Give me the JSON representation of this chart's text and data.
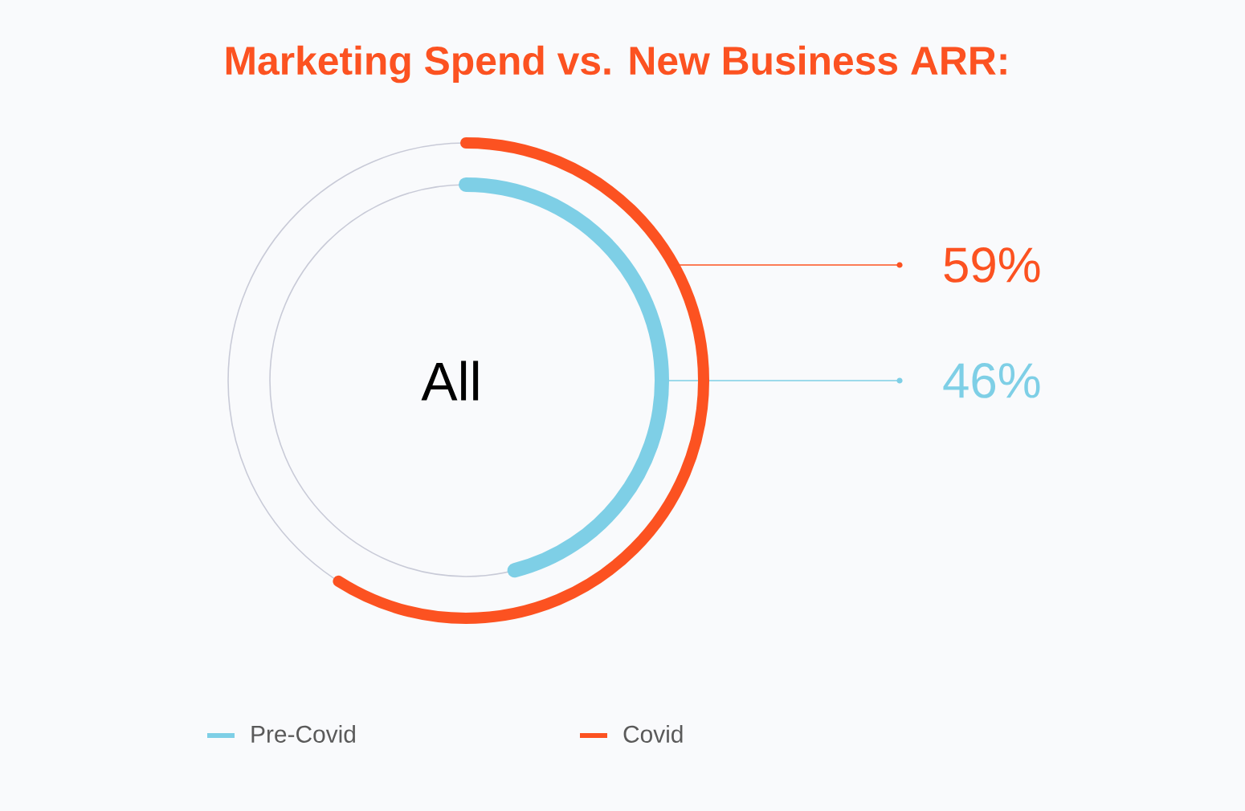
{
  "chart_data": {
    "type": "other",
    "title": "Marketing Spend vs. New Business ARR:",
    "categories": [
      "All"
    ],
    "series": [
      {
        "name": "Pre-Covid",
        "color": "#7ecfe6",
        "values": [
          46
        ],
        "value_labels": [
          "46%"
        ]
      },
      {
        "name": "Covid",
        "color": "#fc5221",
        "values": [
          59
        ],
        "value_labels": [
          "59%"
        ]
      }
    ],
    "legend": "bottom"
  }
}
